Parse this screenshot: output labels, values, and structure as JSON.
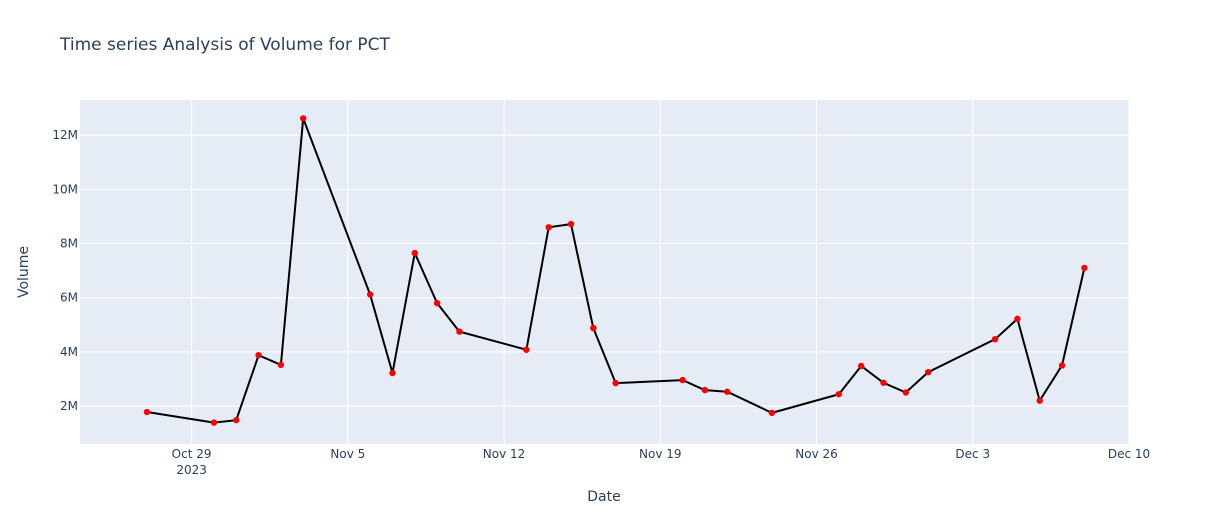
{
  "chart_data": {
    "type": "line",
    "title": "Time series Analysis of Volume for PCT",
    "xlabel": "Date",
    "ylabel": "Volume",
    "x_ticks": [
      {
        "date": "2023-10-29",
        "label": "Oct 29",
        "sublabel": "2023"
      },
      {
        "date": "2023-11-05",
        "label": "Nov 5"
      },
      {
        "date": "2023-11-12",
        "label": "Nov 12"
      },
      {
        "date": "2023-11-19",
        "label": "Nov 19"
      },
      {
        "date": "2023-11-26",
        "label": "Nov 26"
      },
      {
        "date": "2023-12-03",
        "label": "Dec 3"
      },
      {
        "date": "2023-12-10",
        "label": "Dec 10"
      }
    ],
    "y_ticks": [
      {
        "value": 2000000,
        "label": "2M"
      },
      {
        "value": 4000000,
        "label": "4M"
      },
      {
        "value": 6000000,
        "label": "6M"
      },
      {
        "value": 8000000,
        "label": "8M"
      },
      {
        "value": 10000000,
        "label": "10M"
      },
      {
        "value": 12000000,
        "label": "12M"
      }
    ],
    "xlim": [
      "2023-10-24",
      "2023-12-10"
    ],
    "ylim": [
      600000,
      13300000
    ],
    "grid": true,
    "line_color": "#000000",
    "marker_color": "#ff0000",
    "plot_bgcolor": "#e5ecf6",
    "series": [
      {
        "values": [
          {
            "x": "2023-10-27",
            "y": 1780000
          },
          {
            "x": "2023-10-30",
            "y": 1390000
          },
          {
            "x": "2023-10-31",
            "y": 1480000
          },
          {
            "x": "2023-11-01",
            "y": 3880000
          },
          {
            "x": "2023-11-02",
            "y": 3520000
          },
          {
            "x": "2023-11-03",
            "y": 12620000
          },
          {
            "x": "2023-11-06",
            "y": 6120000
          },
          {
            "x": "2023-11-07",
            "y": 3220000
          },
          {
            "x": "2023-11-08",
            "y": 7650000
          },
          {
            "x": "2023-11-09",
            "y": 5800000
          },
          {
            "x": "2023-11-10",
            "y": 4750000
          },
          {
            "x": "2023-11-13",
            "y": 4080000
          },
          {
            "x": "2023-11-14",
            "y": 8600000
          },
          {
            "x": "2023-11-15",
            "y": 8720000
          },
          {
            "x": "2023-11-16",
            "y": 4880000
          },
          {
            "x": "2023-11-17",
            "y": 2850000
          },
          {
            "x": "2023-11-20",
            "y": 2960000
          },
          {
            "x": "2023-11-21",
            "y": 2590000
          },
          {
            "x": "2023-11-22",
            "y": 2530000
          },
          {
            "x": "2023-11-24",
            "y": 1750000
          },
          {
            "x": "2023-11-27",
            "y": 2440000
          },
          {
            "x": "2023-11-28",
            "y": 3480000
          },
          {
            "x": "2023-11-29",
            "y": 2860000
          },
          {
            "x": "2023-11-30",
            "y": 2500000
          },
          {
            "x": "2023-12-01",
            "y": 3250000
          },
          {
            "x": "2023-12-04",
            "y": 4470000
          },
          {
            "x": "2023-12-05",
            "y": 5220000
          },
          {
            "x": "2023-12-06",
            "y": 2200000
          },
          {
            "x": "2023-12-07",
            "y": 3500000
          },
          {
            "x": "2023-12-08",
            "y": 7100000
          }
        ]
      }
    ]
  }
}
